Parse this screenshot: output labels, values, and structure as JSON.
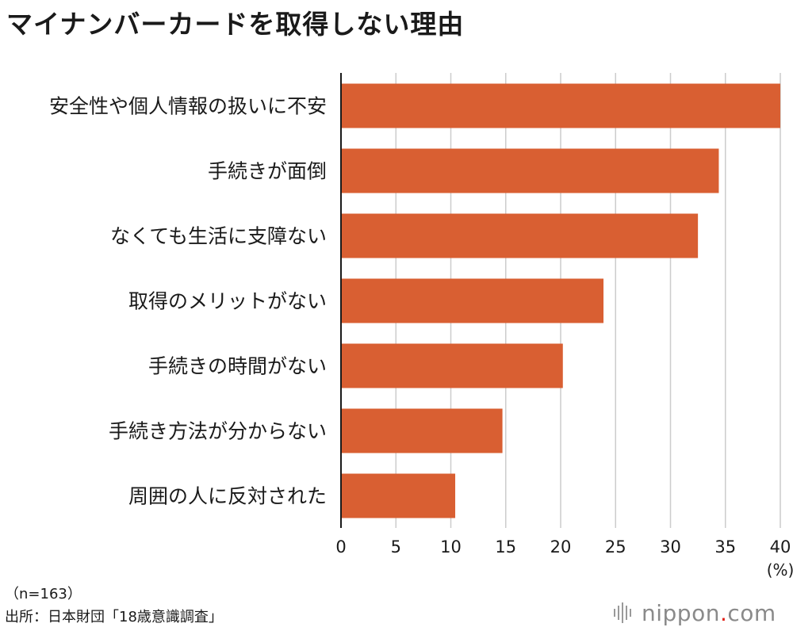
{
  "chart_data": {
    "type": "bar",
    "orientation": "horizontal",
    "title": "マイナンバーカードを取得しない理由",
    "categories": [
      "安全性や個人情報の扱いに不安",
      "手続きが面倒",
      "なくても生活に支障ない",
      "取得のメリットがない",
      "手続きの時間がない",
      "手続き方法が分からない",
      "周囲の人に反対された"
    ],
    "values": [
      40.0,
      34.4,
      32.5,
      23.9,
      20.2,
      14.7,
      10.4
    ],
    "xlim": [
      0,
      40
    ],
    "xticks": [
      "0",
      "5",
      "10",
      "15",
      "20",
      "25",
      "30",
      "35",
      "40"
    ],
    "xlabel": "(%)",
    "grid": true,
    "bar_color": "#d95f32",
    "grid_color": "#cccccc"
  },
  "footer": {
    "sample": "（n=163）",
    "source": "出所：日本財団「18歳意識調査」"
  },
  "logo": {
    "name": "nippon",
    "dot": ".",
    "suffix": "com"
  }
}
